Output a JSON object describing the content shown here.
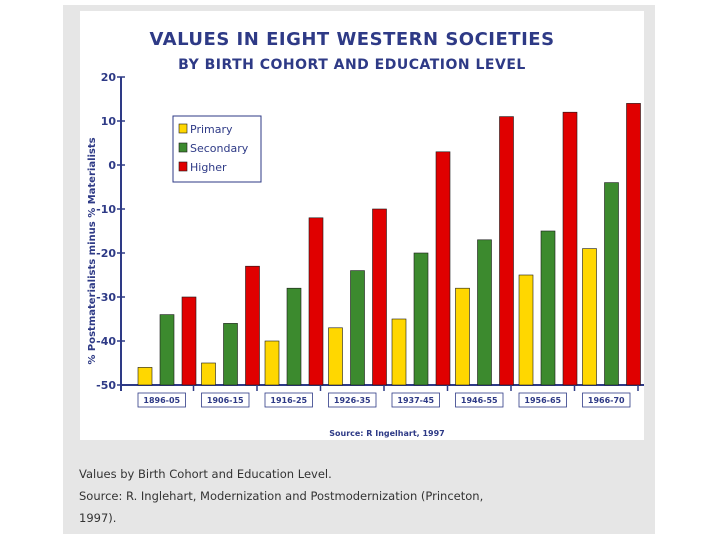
{
  "chart_data": {
    "type": "bar",
    "title": "Values in Eight Western Societies",
    "subtitle": "by Birth Cohort and Education Level",
    "ylabel": "% Postmaterialists minus % Materialists",
    "xlabel": "",
    "ylim": [
      -50,
      20
    ],
    "yticks": [
      20,
      10,
      0,
      -10,
      -20,
      -30,
      -40,
      -50
    ],
    "categories": [
      "1896-05",
      "1906-15",
      "1916-25",
      "1926-35",
      "1937-45",
      "1946-55",
      "1956-65",
      "1966-70"
    ],
    "series": [
      {
        "name": "Primary",
        "color": "#ffd700",
        "values": [
          -46,
          -45,
          -40,
          -37,
          -35,
          -28,
          -25,
          -19
        ]
      },
      {
        "name": "Secondary",
        "color": "#3c8a2e",
        "values": [
          -34,
          -36,
          -28,
          -24,
          -20,
          -17,
          -15,
          -4
        ]
      },
      {
        "name": "Higher",
        "color": "#e00000",
        "values": [
          -30,
          -23,
          -12,
          -10,
          3,
          11,
          12,
          14
        ]
      }
    ],
    "legend_position": "top-left",
    "grid": false,
    "source": "Source: R Ingelhart, 1997"
  },
  "caption": {
    "line1": "Values by Birth Cohort and Education Level.",
    "line2": "Source: R. Inglehart, Modernization and Postmodernization (Princeton,",
    "line3": "1997)."
  }
}
